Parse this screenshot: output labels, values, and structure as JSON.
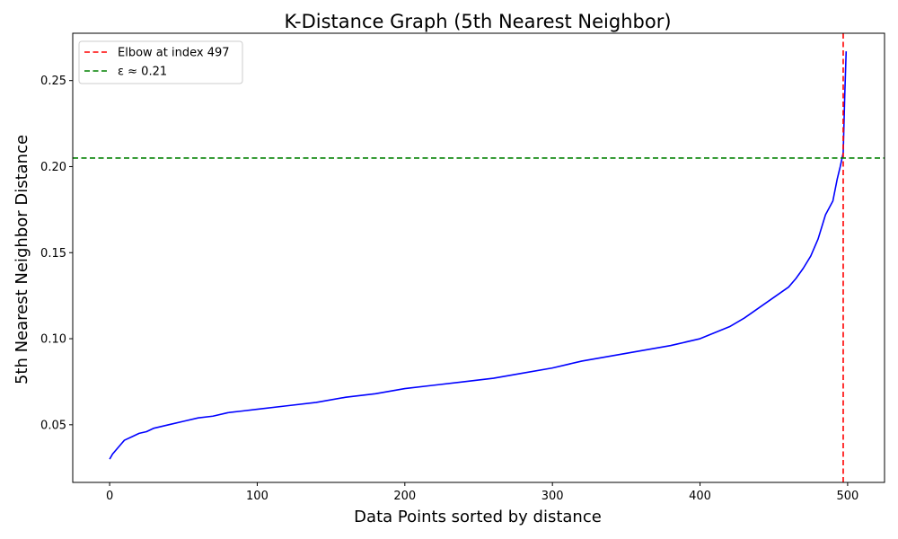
{
  "chart_data": {
    "type": "line",
    "title": "K-Distance Graph (5th Nearest Neighbor)",
    "xlabel": "Data Points sorted by distance",
    "ylabel": "5th Nearest Neighbor Distance",
    "xlim": [
      -25,
      525
    ],
    "ylim": [
      0.0165,
      0.2775
    ],
    "xticks": [
      0,
      100,
      200,
      300,
      400,
      500
    ],
    "yticks": [
      0.05,
      0.1,
      0.15,
      0.2,
      0.25
    ],
    "ytick_labels": [
      "0.05",
      "0.10",
      "0.15",
      "0.20",
      "0.25"
    ],
    "grid": false,
    "legend_position": "top-left",
    "series": [
      {
        "color": "#0000ff",
        "style": "solid",
        "x": [
          0,
          2,
          5,
          8,
          10,
          15,
          20,
          25,
          30,
          40,
          50,
          60,
          70,
          80,
          90,
          100,
          120,
          140,
          160,
          180,
          200,
          220,
          240,
          260,
          280,
          300,
          320,
          340,
          360,
          380,
          400,
          420,
          430,
          440,
          450,
          460,
          465,
          470,
          475,
          480,
          485,
          490,
          493,
          495,
          497,
          498,
          499
        ],
        "y": [
          0.03,
          0.033,
          0.036,
          0.039,
          0.041,
          0.043,
          0.045,
          0.046,
          0.048,
          0.05,
          0.052,
          0.054,
          0.055,
          0.057,
          0.058,
          0.059,
          0.061,
          0.063,
          0.066,
          0.068,
          0.071,
          0.073,
          0.075,
          0.077,
          0.08,
          0.083,
          0.087,
          0.09,
          0.093,
          0.096,
          0.1,
          0.107,
          0.112,
          0.118,
          0.124,
          0.13,
          0.135,
          0.141,
          0.148,
          0.158,
          0.172,
          0.18,
          0.193,
          0.2,
          0.208,
          0.24,
          0.267
        ]
      }
    ],
    "reference_lines": [
      {
        "orientation": "vertical",
        "value": 497,
        "color": "#ff0000",
        "style": "dashed",
        "label": "Elbow at index 497"
      },
      {
        "orientation": "horizontal",
        "value": 0.205,
        "color": "#008000",
        "style": "dashed",
        "label": "ε ≈ 0.21"
      }
    ]
  }
}
